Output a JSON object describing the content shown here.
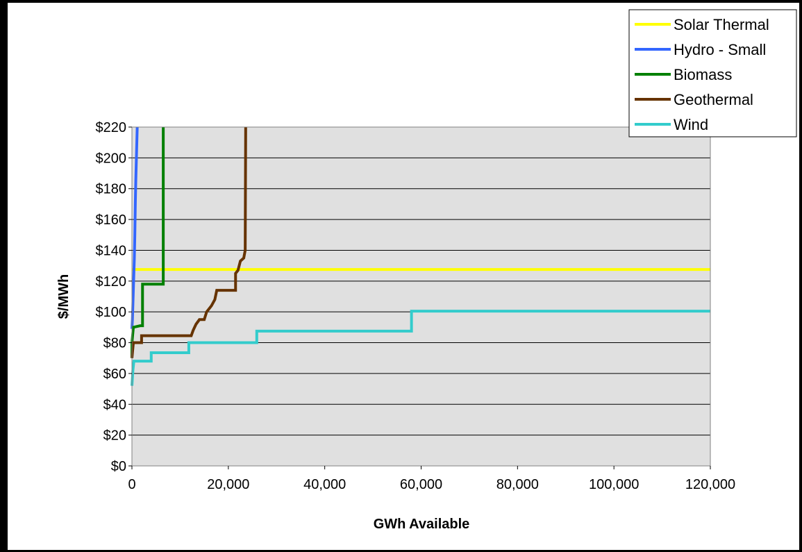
{
  "chart_data": {
    "type": "line",
    "title": "",
    "xlabel": "GWh Available",
    "ylabel": "$/MWh",
    "xlim": [
      0,
      120000
    ],
    "ylim": [
      0,
      220
    ],
    "x_ticks": [
      0,
      20000,
      40000,
      60000,
      80000,
      100000,
      120000
    ],
    "x_tick_labels": [
      "0",
      "20,000",
      "40,000",
      "60,000",
      "80,000",
      "100,000",
      "120,000"
    ],
    "y_ticks": [
      0,
      20,
      40,
      60,
      80,
      100,
      120,
      140,
      160,
      180,
      200,
      220
    ],
    "y_tick_labels": [
      "$0",
      "$20",
      "$40",
      "$60",
      "$80",
      "$100",
      "$120",
      "$140",
      "$160",
      "$180",
      "$200",
      "$220"
    ],
    "grid": "horizontal",
    "legend_position": "top-right",
    "series": [
      {
        "name": "Solar Thermal",
        "color": "#ffff00",
        "x": [
          0,
          120000
        ],
        "y": [
          127.5,
          127.5
        ]
      },
      {
        "name": "Hydro - Small",
        "color": "#3366ff",
        "x": [
          0,
          100,
          200,
          300,
          400,
          500,
          600,
          700,
          800,
          1100
        ],
        "y": [
          89,
          95,
          105,
          115,
          125,
          135,
          150,
          170,
          185,
          220
        ]
      },
      {
        "name": "Biomass",
        "color": "#008000",
        "x": [
          0,
          0,
          300,
          1700,
          2200,
          2200,
          6500,
          6500,
          6500
        ],
        "y": [
          70,
          80,
          90,
          91,
          91,
          118,
          118,
          130,
          220
        ]
      },
      {
        "name": "Geothermal",
        "color": "#663300",
        "x": [
          0,
          300,
          300,
          2000,
          2000,
          12300,
          12700,
          13300,
          14000,
          15000,
          15500,
          16500,
          17200,
          17600,
          21500,
          21500,
          22000,
          22500,
          23200,
          23500,
          23600
        ],
        "y": [
          70,
          80,
          80,
          80,
          84.5,
          84.5,
          88,
          92,
          95,
          95,
          100,
          104,
          108,
          114,
          114,
          125,
          127,
          133,
          135,
          140,
          220
        ]
      },
      {
        "name": "Wind",
        "color": "#33cccc",
        "x": [
          0,
          200,
          400,
          4000,
          4000,
          11800,
          11800,
          25900,
          25900,
          58000,
          58000,
          120000
        ],
        "y": [
          52,
          62,
          68,
          68,
          73.5,
          73.5,
          80,
          80,
          87.5,
          87.5,
          100.5,
          100.5
        ]
      }
    ]
  }
}
